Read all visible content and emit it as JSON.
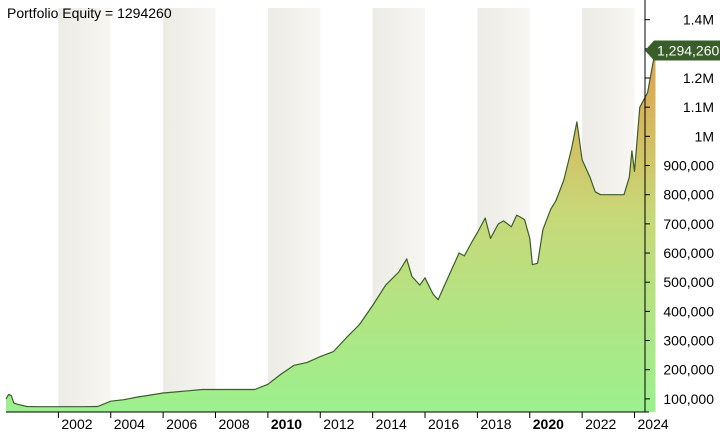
{
  "chart_data": {
    "type": "area",
    "title": "Portfolio Equity = 1294260",
    "xlabel": "",
    "ylabel": "",
    "xlim": [
      2000.0,
      2024.4
    ],
    "ylim": [
      55000,
      1440000
    ],
    "y_ticks": [
      {
        "value": 100000,
        "label": "100,000"
      },
      {
        "value": 200000,
        "label": "200,000"
      },
      {
        "value": 300000,
        "label": "300,000"
      },
      {
        "value": 400000,
        "label": "400,000"
      },
      {
        "value": 500000,
        "label": "500,000"
      },
      {
        "value": 600000,
        "label": "600,000"
      },
      {
        "value": 700000,
        "label": "700,000"
      },
      {
        "value": 800000,
        "label": "800,000"
      },
      {
        "value": 900000,
        "label": "900,000"
      },
      {
        "value": 1000000,
        "label": "1M"
      },
      {
        "value": 1100000,
        "label": "1.1M"
      },
      {
        "value": 1200000,
        "label": "1.2M"
      },
      {
        "value": 1300000,
        "label": "1.3M"
      },
      {
        "value": 1400000,
        "label": "1.4M"
      }
    ],
    "x_ticks": [
      {
        "value": 2002,
        "label": "2002",
        "bold": false
      },
      {
        "value": 2004,
        "label": "2004",
        "bold": false
      },
      {
        "value": 2006,
        "label": "2006",
        "bold": false
      },
      {
        "value": 2008,
        "label": "2008",
        "bold": false
      },
      {
        "value": 2010,
        "label": "2010",
        "bold": true
      },
      {
        "value": 2012,
        "label": "2012",
        "bold": false
      },
      {
        "value": 2014,
        "label": "2014",
        "bold": false
      },
      {
        "value": 2016,
        "label": "2016",
        "bold": false
      },
      {
        "value": 2018,
        "label": "2018",
        "bold": false
      },
      {
        "value": 2020,
        "label": "2020",
        "bold": true
      },
      {
        "value": 2022,
        "label": "2022",
        "bold": false
      },
      {
        "value": 2024,
        "label": "2024",
        "bold": false
      }
    ],
    "last_value_label": "1,294,260",
    "series": [
      {
        "values": [
          [
            2000.0,
            100000
          ],
          [
            2000.1,
            115000
          ],
          [
            2000.2,
            112000
          ],
          [
            2000.3,
            85000
          ],
          [
            2000.5,
            80000
          ],
          [
            2000.8,
            74000
          ],
          [
            2001.2,
            73000
          ],
          [
            2002.0,
            73000
          ],
          [
            2003.0,
            73000
          ],
          [
            2003.5,
            74000
          ],
          [
            2004.0,
            92000
          ],
          [
            2004.5,
            97000
          ],
          [
            2005.0,
            106000
          ],
          [
            2005.5,
            113000
          ],
          [
            2006.0,
            120000
          ],
          [
            2006.5,
            124000
          ],
          [
            2007.0,
            128000
          ],
          [
            2007.5,
            132000
          ],
          [
            2008.0,
            132000
          ],
          [
            2009.0,
            132000
          ],
          [
            2009.5,
            132000
          ],
          [
            2010.0,
            150000
          ],
          [
            2010.5,
            185000
          ],
          [
            2011.0,
            215000
          ],
          [
            2011.5,
            225000
          ],
          [
            2012.0,
            245000
          ],
          [
            2012.5,
            262000
          ],
          [
            2013.0,
            310000
          ],
          [
            2013.5,
            355000
          ],
          [
            2014.0,
            420000
          ],
          [
            2014.5,
            490000
          ],
          [
            2015.0,
            535000
          ],
          [
            2015.3,
            580000
          ],
          [
            2015.5,
            520000
          ],
          [
            2015.8,
            490000
          ],
          [
            2016.0,
            515000
          ],
          [
            2016.3,
            460000
          ],
          [
            2016.5,
            440000
          ],
          [
            2016.7,
            480000
          ],
          [
            2017.0,
            540000
          ],
          [
            2017.3,
            600000
          ],
          [
            2017.5,
            590000
          ],
          [
            2017.8,
            640000
          ],
          [
            2018.0,
            670000
          ],
          [
            2018.3,
            720000
          ],
          [
            2018.5,
            650000
          ],
          [
            2018.8,
            700000
          ],
          [
            2019.0,
            710000
          ],
          [
            2019.3,
            690000
          ],
          [
            2019.5,
            730000
          ],
          [
            2019.8,
            715000
          ],
          [
            2020.0,
            650000
          ],
          [
            2020.1,
            560000
          ],
          [
            2020.3,
            565000
          ],
          [
            2020.5,
            680000
          ],
          [
            2020.8,
            750000
          ],
          [
            2021.0,
            780000
          ],
          [
            2021.3,
            850000
          ],
          [
            2021.6,
            960000
          ],
          [
            2021.8,
            1050000
          ],
          [
            2022.0,
            920000
          ],
          [
            2022.3,
            860000
          ],
          [
            2022.5,
            810000
          ],
          [
            2022.7,
            800000
          ],
          [
            2023.0,
            800000
          ],
          [
            2023.3,
            800000
          ],
          [
            2023.6,
            800000
          ],
          [
            2023.8,
            860000
          ],
          [
            2023.9,
            950000
          ],
          [
            2024.0,
            880000
          ],
          [
            2024.2,
            1100000
          ],
          [
            2024.5,
            1150000
          ],
          [
            2024.7,
            1250000
          ],
          [
            2024.8,
            1294260
          ]
        ]
      }
    ],
    "colors": {
      "line": "#3a5e2a",
      "fill_top": "#e0a04a",
      "fill_upper": "#c8d878",
      "fill_bottom": "#9cf08e",
      "band_dark": "#ecebe5",
      "band_light": "#f7f6f2",
      "label_bg": "#3a5e2a",
      "label_text": "#ffffff"
    },
    "grid": true,
    "legend": "none"
  }
}
